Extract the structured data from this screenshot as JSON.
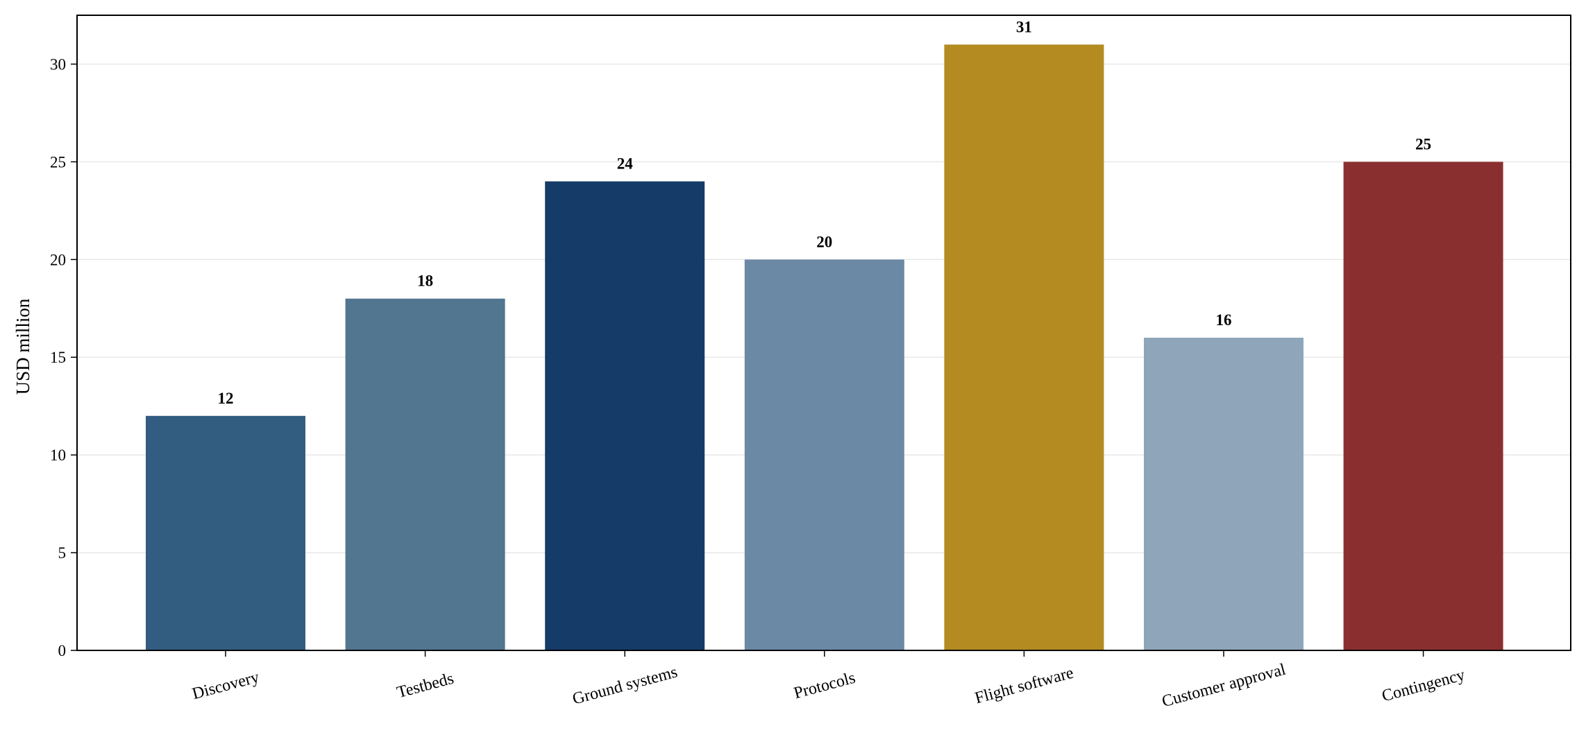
{
  "chart_data": {
    "type": "bar",
    "categories": [
      "Discovery",
      "Testbeds",
      "Ground systems",
      "Protocols",
      "Flight software",
      "Customer approval",
      "Contingency"
    ],
    "values": [
      12,
      18,
      24,
      20,
      31,
      16,
      25
    ],
    "colors": [
      "#335c81",
      "#527590",
      "#153b68",
      "#6b89a5",
      "#b38b21",
      "#8fa5b9",
      "#8a2f2f"
    ],
    "title": "",
    "xlabel": "",
    "ylabel": "USD million",
    "ylim": [
      0,
      32.5
    ],
    "yticks": [
      0,
      5,
      10,
      15,
      20,
      25,
      30
    ],
    "grid": "horizontal",
    "grid_color": "#e8e8e8",
    "data_labels": true
  }
}
